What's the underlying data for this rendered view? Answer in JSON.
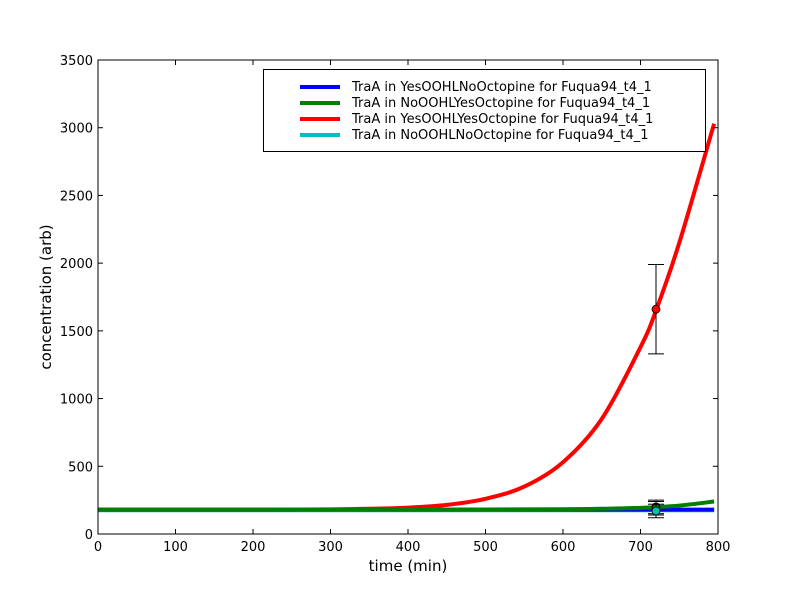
{
  "chart_data": {
    "type": "line",
    "title": "",
    "xlabel": "time (min)",
    "ylabel": "concentration (arb)",
    "xlim": [
      0,
      800
    ],
    "ylim": [
      0,
      3500
    ],
    "xticks": [
      "0",
      "100",
      "200",
      "300",
      "400",
      "500",
      "600",
      "700",
      "800"
    ],
    "yticks": [
      "0",
      "500",
      "1000",
      "1500",
      "2000",
      "2500",
      "3000",
      "3500"
    ],
    "grid": false,
    "legend_position": "upper right",
    "series": [
      {
        "name": "TraA in YesOOHLNoOctopine for Fuqua94_t4_1",
        "color": "#0000ff",
        "x": [
          0,
          100,
          200,
          300,
          400,
          500,
          600,
          700,
          795
        ],
        "y": [
          180,
          180,
          180,
          180,
          180,
          180,
          180,
          180,
          180
        ],
        "errorbar": {
          "x": 720,
          "y": 200,
          "low": 150,
          "high": 250
        }
      },
      {
        "name": "TraA in NoOOHLYesOctopine for Fuqua94_t4_1",
        "color": "#008000",
        "x": [
          0,
          100,
          200,
          300,
          400,
          500,
          600,
          650,
          700,
          750,
          795
        ],
        "y": [
          180,
          180,
          180,
          180,
          180,
          181,
          183,
          186,
          193,
          210,
          240
        ],
        "errorbar": {
          "x": 720,
          "y": 190,
          "low": 140,
          "high": 240
        }
      },
      {
        "name": "TraA in YesOOHLYesOctopine for Fuqua94_t4_1",
        "color": "#ff0000",
        "x": [
          0,
          100,
          200,
          300,
          350,
          400,
          450,
          500,
          550,
          600,
          650,
          700,
          720,
          750,
          795
        ],
        "y": [
          180,
          180,
          180,
          182,
          186,
          195,
          215,
          260,
          350,
          530,
          850,
          1380,
          1650,
          2150,
          3030
        ],
        "errorbar": {
          "x": 720,
          "y": 1660,
          "low": 1330,
          "high": 1990
        }
      },
      {
        "name": "TraA in NoOOHLNoOctopine for Fuqua94_t4_1",
        "color": "#00bfbf",
        "x": [
          0,
          100,
          200,
          300,
          400,
          500,
          600,
          700,
          795
        ],
        "y": [
          175,
          175,
          175,
          175,
          175,
          175,
          175,
          175,
          175
        ],
        "errorbar": {
          "x": 720,
          "y": 170,
          "low": 120,
          "high": 220
        }
      }
    ]
  },
  "legend": {
    "items": [
      {
        "label": "TraA in YesOOHLNoOctopine for Fuqua94_t4_1",
        "color": "#0000ff"
      },
      {
        "label": "TraA in NoOOHLYesOctopine for Fuqua94_t4_1",
        "color": "#008000"
      },
      {
        "label": "TraA in YesOOHLYesOctopine for Fuqua94_t4_1",
        "color": "#ff0000"
      },
      {
        "label": "TraA in NoOOHLNoOctopine for Fuqua94_t4_1",
        "color": "#00bfbf"
      }
    ]
  }
}
